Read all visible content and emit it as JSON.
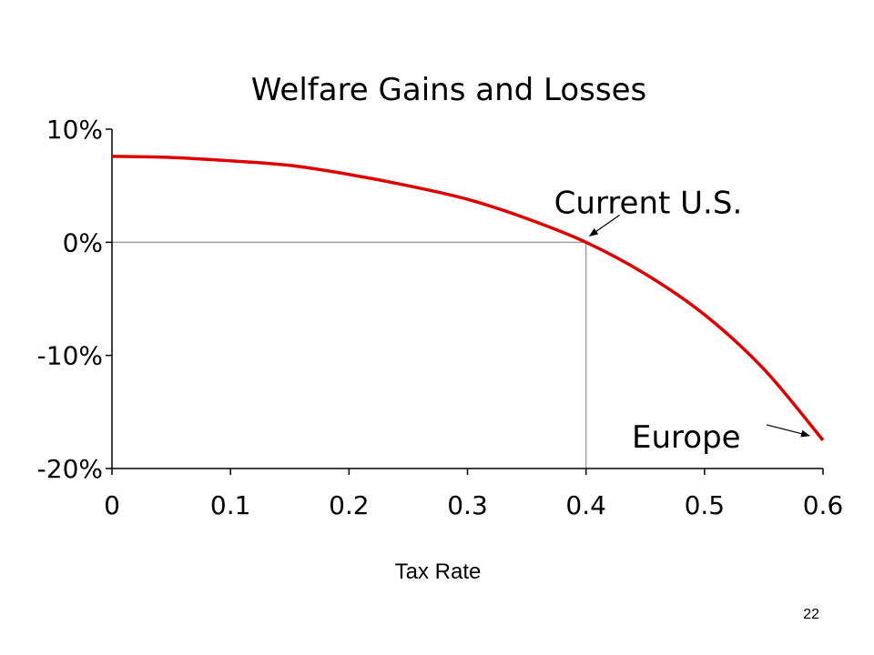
{
  "chart_data": {
    "type": "line",
    "title": "Welfare Gains and Losses",
    "xlabel": "Tax Rate",
    "ylabel": "",
    "xlim": [
      0,
      0.6
    ],
    "ylim": [
      -20,
      10
    ],
    "x_ticks": [
      0,
      0.1,
      0.2,
      0.3,
      0.4,
      0.5,
      0.6
    ],
    "x_tick_labels": [
      "0",
      "0.1",
      "0.2",
      "0.3",
      "0.4",
      "0.5",
      "0.6"
    ],
    "y_ticks": [
      10,
      0,
      -10,
      -20
    ],
    "y_tick_labels": [
      "10%",
      "0%",
      "-10%",
      "-20%"
    ],
    "grid": false,
    "reference_lines": {
      "y": 0,
      "x": 0.4,
      "color": "#a0a0a0"
    },
    "series": [
      {
        "color": "#dd0000",
        "x": [
          0,
          0.05,
          0.1,
          0.15,
          0.2,
          0.25,
          0.3,
          0.35,
          0.4,
          0.45,
          0.5,
          0.55,
          0.6
        ],
        "y": [
          7.6,
          7.5,
          7.2,
          6.8,
          6.0,
          5.0,
          3.8,
          2.1,
          0.0,
          -2.8,
          -6.4,
          -11.2,
          -17.5
        ]
      }
    ],
    "annotations": [
      {
        "text": "Current U.S.",
        "x": 0.4,
        "y": 0
      },
      {
        "text": "Europe",
        "x": 0.6,
        "y": -17.5
      }
    ]
  },
  "slide_number": "22",
  "colors": {
    "axis": "#000000",
    "ref": "#a0a0a0",
    "series": "#dd0000"
  }
}
